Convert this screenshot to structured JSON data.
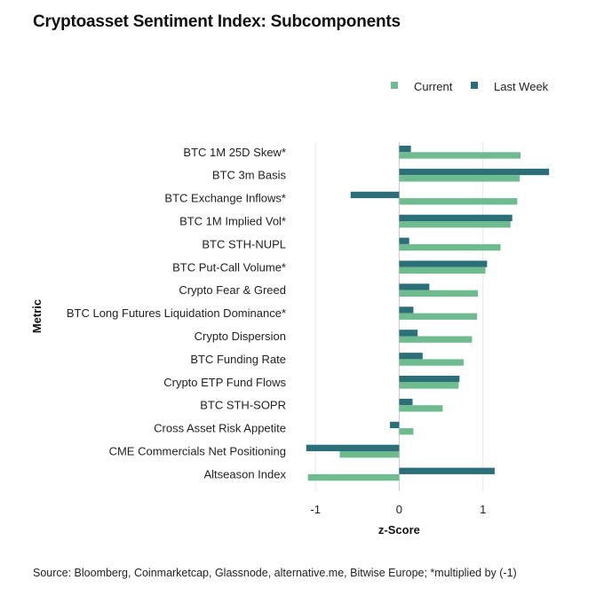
{
  "title": "Cryptoasset Sentiment Index: Subcomponents",
  "source": "Source: Bloomberg, Coinmarketcap, Glassnode, alternative.me, Bitwise Europe; *multiplied by (-1)",
  "colors": {
    "current": "#6dbb8e",
    "last_week": "#2b6f78",
    "grid": "#e6e6e6",
    "zero": "#c8c8c8"
  },
  "chart_data": {
    "type": "bar",
    "orientation": "horizontal",
    "ylabel": "Metric",
    "xlabel": "z-Score",
    "xlim": [
      -1.15,
      1.82
    ],
    "xticks": [
      -1,
      0,
      1
    ],
    "xtick_labels": [
      "-1",
      "0",
      "1"
    ],
    "grid": true,
    "legend": "top-right",
    "categories": [
      "BTC 1M 25D Skew*",
      "BTC 3m Basis",
      "BTC Exchange Inflows*",
      "BTC 1M Implied Vol*",
      "BTC STH-NUPL",
      "BTC Put-Call Volume*",
      "Crypto Fear & Greed",
      "BTC Long Futures Liquidation Dominance*",
      "Crypto Dispersion",
      "BTC Funding Rate",
      "Crypto ETP Fund Flows",
      "BTC STH-SOPR",
      "Cross Asset Risk Appetite",
      "CME Commercials Net Positioning",
      "Altseason Index"
    ],
    "series": [
      {
        "name": "Current",
        "values": [
          1.45,
          1.44,
          1.41,
          1.33,
          1.21,
          1.03,
          0.94,
          0.93,
          0.87,
          0.77,
          0.71,
          0.52,
          0.17,
          -0.71,
          -1.09
        ]
      },
      {
        "name": "Last Week",
        "values": [
          0.14,
          1.79,
          -0.58,
          1.35,
          0.12,
          1.05,
          0.36,
          0.17,
          0.22,
          0.28,
          0.72,
          0.16,
          -0.11,
          -1.11,
          1.14
        ]
      }
    ]
  }
}
